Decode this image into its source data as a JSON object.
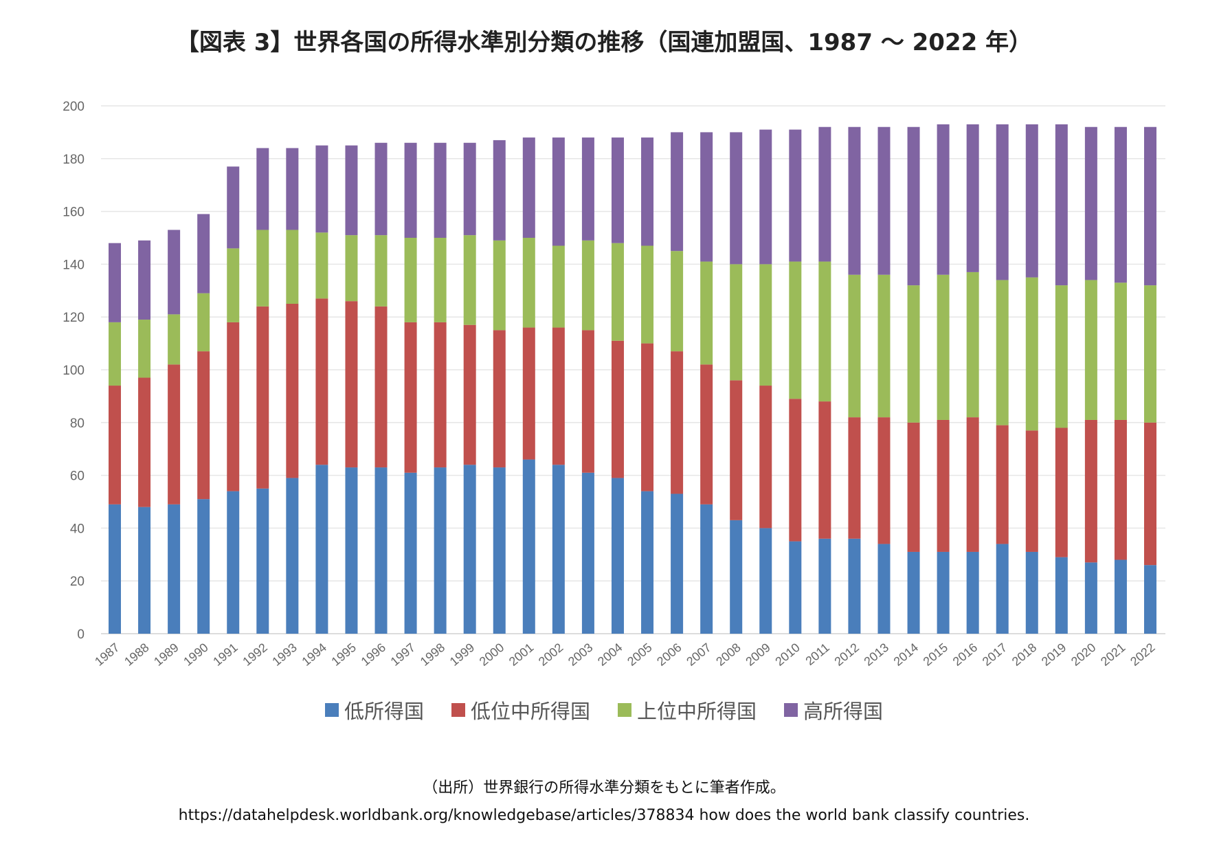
{
  "chart_data": {
    "type": "bar",
    "stacked": true,
    "title": "【図表 3】世界各国の所得水準別分類の推移（国連加盟国、1987 ～ 2022 年）",
    "xlabel": "",
    "ylabel": "",
    "ylim": [
      0,
      200
    ],
    "yticks": [
      0,
      20,
      40,
      60,
      80,
      100,
      120,
      140,
      160,
      180,
      200
    ],
    "grid": true,
    "legend_position": "bottom",
    "categories": [
      "1987",
      "1988",
      "1989",
      "1990",
      "1991",
      "1992",
      "1993",
      "1994",
      "1995",
      "1996",
      "1997",
      "1998",
      "1999",
      "2000",
      "2001",
      "2002",
      "2003",
      "2004",
      "2005",
      "2006",
      "2007",
      "2008",
      "2009",
      "2010",
      "2011",
      "2012",
      "2013",
      "2014",
      "2015",
      "2016",
      "2017",
      "2018",
      "2019",
      "2020",
      "2021",
      "2022"
    ],
    "series": [
      {
        "name": "低所得国",
        "color": "#4a7ebb",
        "values": [
          49,
          48,
          49,
          51,
          54,
          55,
          59,
          64,
          63,
          63,
          61,
          63,
          64,
          63,
          66,
          64,
          61,
          59,
          54,
          53,
          49,
          43,
          40,
          35,
          36,
          36,
          34,
          31,
          31,
          31,
          34,
          31,
          29,
          27,
          28,
          26
        ]
      },
      {
        "name": "低位中所得国",
        "color": "#c0504d",
        "values": [
          45,
          49,
          53,
          56,
          64,
          69,
          66,
          63,
          63,
          61,
          57,
          55,
          53,
          52,
          50,
          52,
          54,
          52,
          56,
          54,
          53,
          53,
          54,
          54,
          52,
          46,
          48,
          49,
          50,
          51,
          45,
          46,
          49,
          54,
          53,
          54
        ]
      },
      {
        "name": "上位中所得国",
        "color": "#9bbb59",
        "values": [
          24,
          22,
          19,
          22,
          28,
          29,
          28,
          25,
          25,
          27,
          32,
          32,
          34,
          34,
          34,
          31,
          34,
          37,
          37,
          38,
          39,
          44,
          46,
          52,
          53,
          54,
          54,
          52,
          55,
          55,
          55,
          58,
          54,
          53,
          52,
          52
        ]
      },
      {
        "name": "高所得国",
        "color": "#8064a2",
        "values": [
          30,
          30,
          32,
          30,
          31,
          31,
          31,
          33,
          34,
          35,
          36,
          36,
          35,
          38,
          38,
          41,
          39,
          40,
          41,
          45,
          49,
          50,
          51,
          50,
          51,
          56,
          56,
          60,
          57,
          56,
          59,
          58,
          61,
          58,
          59,
          60
        ]
      }
    ]
  },
  "source": {
    "line1": "（出所）世界銀行の所得水準分類をもとに筆者作成。",
    "line2": "https://datahelpdesk.worldbank.org/knowledgebase/articles/378834 how does the world bank classify countries."
  }
}
